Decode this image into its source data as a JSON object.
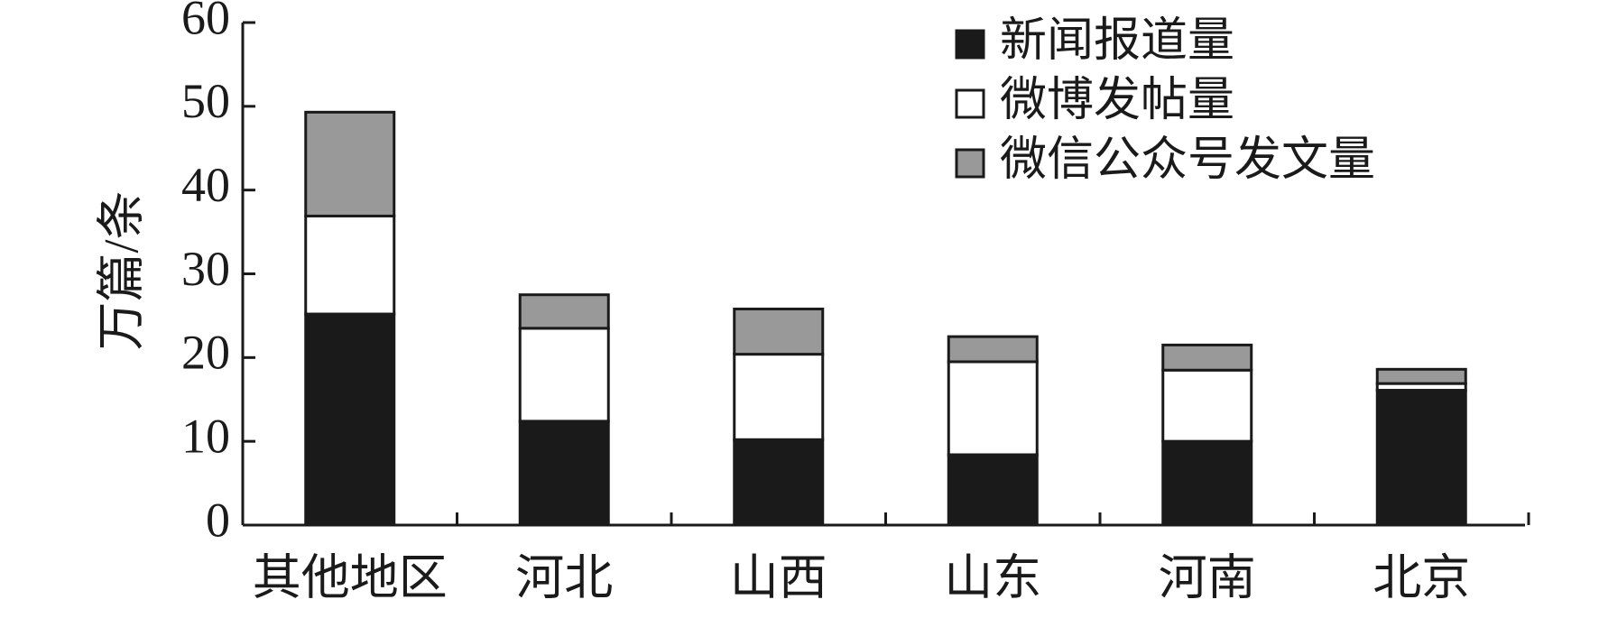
{
  "chart_data": {
    "type": "stacked_bar",
    "y_label": "万篇/条",
    "categories": [
      "其他地区",
      "河北",
      "山西",
      "山东",
      "河南",
      "北京"
    ],
    "series": [
      {
        "name": "新闻报道量",
        "color": "#1a1a1a",
        "values": [
          25.2,
          12.4,
          10.2,
          8.4,
          10.0,
          16.1
        ]
      },
      {
        "name": "微博发帖量",
        "color": "#ffffff",
        "values": [
          11.7,
          11.1,
          10.2,
          11.1,
          8.5,
          0.8
        ]
      },
      {
        "name": "微信公众号发文量",
        "color": "#999999",
        "values": [
          12.4,
          4.0,
          5.4,
          3.0,
          3.0,
          1.7
        ]
      }
    ],
    "ylim": [
      0,
      60
    ],
    "yticks": [
      0,
      10,
      20,
      30,
      40,
      50,
      60
    ],
    "legend": "upper right"
  }
}
